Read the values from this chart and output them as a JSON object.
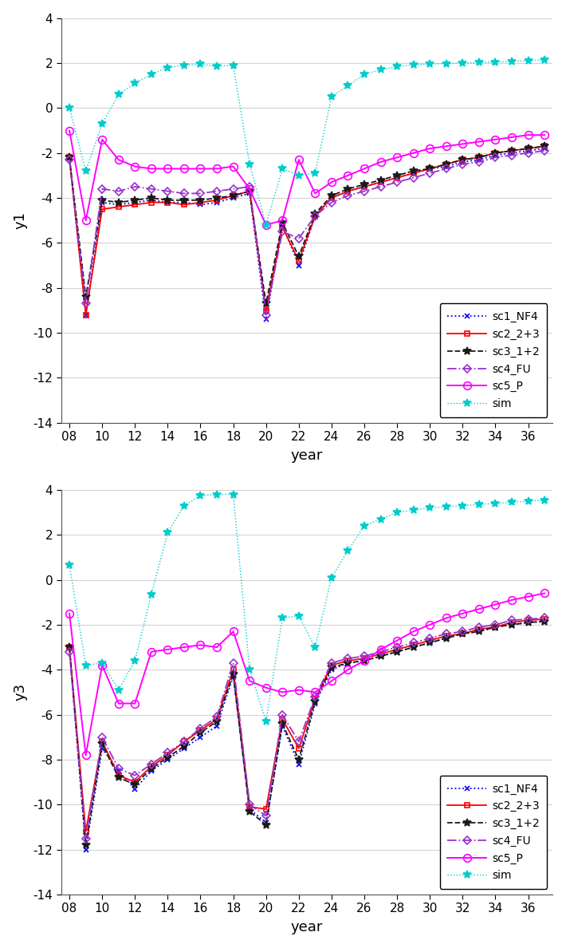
{
  "years": [
    8,
    9,
    10,
    11,
    12,
    13,
    14,
    15,
    16,
    17,
    18,
    19,
    20,
    21,
    22,
    23,
    24,
    25,
    26,
    27,
    28,
    29,
    30,
    31,
    32,
    33,
    34,
    35,
    36,
    37
  ],
  "y1": {
    "sc1_NF4": [
      -2.2,
      -9.2,
      -4.2,
      -4.3,
      -4.2,
      -4.1,
      -4.2,
      -4.2,
      -4.3,
      -4.2,
      -4.0,
      -3.8,
      -9.4,
      -5.2,
      -7.0,
      -4.8,
      -4.0,
      -3.7,
      -3.5,
      -3.3,
      -3.1,
      -2.9,
      -2.7,
      -2.6,
      -2.4,
      -2.3,
      -2.1,
      -2.0,
      -1.9,
      -1.8
    ],
    "sc2_2+3": [
      -2.2,
      -9.2,
      -4.5,
      -4.4,
      -4.3,
      -4.2,
      -4.2,
      -4.3,
      -4.2,
      -4.1,
      -3.9,
      -3.7,
      -9.0,
      -5.3,
      -6.8,
      -4.8,
      -4.0,
      -3.7,
      -3.5,
      -3.3,
      -3.1,
      -2.9,
      -2.7,
      -2.5,
      -2.3,
      -2.2,
      -2.0,
      -1.9,
      -1.8,
      -1.7
    ],
    "sc3_1+2": [
      -2.2,
      -8.4,
      -4.1,
      -4.2,
      -4.1,
      -4.0,
      -4.1,
      -4.1,
      -4.1,
      -4.0,
      -3.9,
      -3.7,
      -8.7,
      -5.1,
      -6.6,
      -4.7,
      -3.9,
      -3.6,
      -3.4,
      -3.2,
      -3.0,
      -2.8,
      -2.7,
      -2.5,
      -2.3,
      -2.2,
      -2.0,
      -1.9,
      -1.8,
      -1.7
    ],
    "sc4_FU": [
      -2.3,
      -8.7,
      -3.6,
      -3.7,
      -3.5,
      -3.6,
      -3.7,
      -3.8,
      -3.8,
      -3.7,
      -3.6,
      -3.5,
      -9.2,
      -5.5,
      -5.8,
      -4.8,
      -4.2,
      -3.9,
      -3.7,
      -3.5,
      -3.3,
      -3.1,
      -2.9,
      -2.7,
      -2.5,
      -2.4,
      -2.2,
      -2.1,
      -2.0,
      -1.9
    ],
    "sc5_P": [
      -1.0,
      -5.0,
      -1.4,
      -2.3,
      -2.6,
      -2.7,
      -2.7,
      -2.7,
      -2.7,
      -2.7,
      -2.6,
      -3.6,
      -5.2,
      -5.0,
      -2.3,
      -3.8,
      -3.3,
      -3.0,
      -2.7,
      -2.4,
      -2.2,
      -2.0,
      -1.8,
      -1.7,
      -1.6,
      -1.5,
      -1.4,
      -1.3,
      -1.2,
      -1.2
    ],
    "sim": [
      -0.0,
      -2.8,
      -0.7,
      0.6,
      1.1,
      1.5,
      1.8,
      1.9,
      1.95,
      1.85,
      1.9,
      -2.5,
      -5.2,
      -2.7,
      -3.0,
      -2.9,
      0.5,
      1.0,
      1.5,
      1.7,
      1.85,
      1.92,
      1.96,
      1.98,
      2.0,
      2.02,
      2.05,
      2.07,
      2.1,
      2.15
    ]
  },
  "y3": {
    "sc1_NF4": [
      -3.0,
      -12.0,
      -7.5,
      -8.5,
      -9.3,
      -8.5,
      -8.0,
      -7.5,
      -7.0,
      -6.5,
      -4.3,
      -10.2,
      -10.8,
      -6.5,
      -8.2,
      -5.5,
      -4.0,
      -3.7,
      -3.6,
      -3.4,
      -3.2,
      -3.0,
      -2.8,
      -2.6,
      -2.4,
      -2.3,
      -2.1,
      -2.0,
      -1.9,
      -1.85
    ],
    "sc2_2+3": [
      -3.0,
      -11.2,
      -7.2,
      -8.7,
      -9.0,
      -8.3,
      -7.8,
      -7.2,
      -6.7,
      -6.2,
      -4.0,
      -10.1,
      -10.2,
      -6.2,
      -7.5,
      -5.3,
      -3.8,
      -3.6,
      -3.5,
      -3.3,
      -3.1,
      -2.9,
      -2.7,
      -2.5,
      -2.4,
      -2.2,
      -2.1,
      -1.9,
      -1.8,
      -1.75
    ],
    "sc3_1+2": [
      -3.0,
      -11.8,
      -7.3,
      -8.8,
      -9.1,
      -8.4,
      -7.9,
      -7.4,
      -6.8,
      -6.3,
      -4.2,
      -10.3,
      -10.9,
      -6.4,
      -8.0,
      -5.4,
      -3.9,
      -3.7,
      -3.6,
      -3.4,
      -3.2,
      -3.0,
      -2.8,
      -2.6,
      -2.4,
      -2.3,
      -2.1,
      -2.0,
      -1.9,
      -1.85
    ],
    "sc4_FU": [
      -3.2,
      -11.5,
      -7.0,
      -8.4,
      -8.7,
      -8.2,
      -7.7,
      -7.2,
      -6.6,
      -6.1,
      -3.7,
      -10.0,
      -10.5,
      -6.0,
      -7.2,
      -5.2,
      -3.7,
      -3.5,
      -3.4,
      -3.2,
      -3.0,
      -2.8,
      -2.6,
      -2.4,
      -2.3,
      -2.1,
      -2.0,
      -1.8,
      -1.75,
      -1.7
    ],
    "sc5_P": [
      -1.5,
      -7.8,
      -3.8,
      -5.5,
      -5.5,
      -3.2,
      -3.1,
      -3.0,
      -2.9,
      -3.0,
      -2.3,
      -4.5,
      -4.8,
      -5.0,
      -4.9,
      -5.0,
      -4.5,
      -4.0,
      -3.6,
      -3.1,
      -2.7,
      -2.3,
      -2.0,
      -1.7,
      -1.5,
      -1.3,
      -1.1,
      -0.9,
      -0.75,
      -0.6
    ],
    "sim": [
      0.65,
      -3.8,
      -3.7,
      -4.9,
      -3.6,
      -0.65,
      2.1,
      3.3,
      3.75,
      3.8,
      3.8,
      -4.0,
      -6.3,
      -1.7,
      -1.6,
      -3.0,
      0.1,
      1.3,
      2.4,
      2.7,
      3.0,
      3.1,
      3.2,
      3.25,
      3.3,
      3.35,
      3.4,
      3.45,
      3.5,
      3.55
    ]
  },
  "colors": {
    "sc1_NF4": "#0000FF",
    "sc2_2+3": "#FF0000",
    "sc3_1+2": "#1A1A1A",
    "sc4_FU": "#9933CC",
    "sc5_P": "#FF00FF",
    "sim": "#00CCCC"
  },
  "linestyles": {
    "sc1_NF4": "dotted",
    "sc2_2+3": "solid",
    "sc3_1+2": "dashed",
    "sc4_FU": "dashdot",
    "sc5_P": "solid",
    "sim": "dotted"
  },
  "markers": {
    "sc1_NF4": "x",
    "sc2_2+3": "s",
    "sc3_1+2": "*",
    "sc4_FU": "D",
    "sc5_P": "o",
    "sim": "*"
  },
  "markersizes": {
    "sc1_NF4": 5,
    "sc2_2+3": 5,
    "sc3_1+2": 7,
    "sc4_FU": 5,
    "sc5_P": 7,
    "sim": 7
  },
  "marker_facecolors": {
    "sc1_NF4": "none",
    "sc2_2+3": "none",
    "sc3_1+2": "#1A1A1A",
    "sc4_FU": "none",
    "sc5_P": "none",
    "sim": "#00CCCC"
  },
  "ylim": [
    -14,
    4
  ],
  "yticks": [
    -14,
    -12,
    -10,
    -8,
    -6,
    -4,
    -2,
    0,
    2,
    4
  ],
  "xticks": [
    8,
    10,
    12,
    14,
    16,
    18,
    20,
    22,
    24,
    26,
    28,
    30,
    32,
    34,
    36
  ],
  "xlabel": "year",
  "ylabel_top": "y1",
  "ylabel_bottom": "y3",
  "background_color": "#FFFFFF"
}
